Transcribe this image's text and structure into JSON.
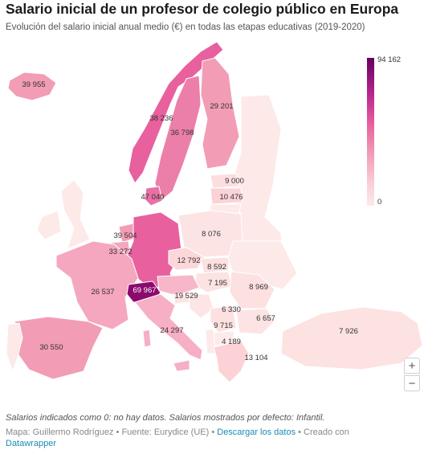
{
  "header": {
    "title": "Salario inicial de un profesor de colegio público en Europa",
    "subtitle": "Evolución del salario inicial anual medio (€) en todas las etapas educativas (2019-2020)"
  },
  "legend": {
    "max_label": "94 162",
    "min_label": "0"
  },
  "colors": {
    "highest": "#67005f",
    "high": "#b8288f",
    "mid": "#e8609e",
    "low": "#f29cb5",
    "lower": "#f9cfd6",
    "lowest": "#fde9e8"
  },
  "values": {
    "iceland": "39 955",
    "norway": "38 236",
    "sweden": "36 798",
    "finland": "29 201",
    "estonia": "9 000",
    "latvia": "10 476",
    "denmark": "47 040",
    "netherlands": "39 504",
    "belgium": "33 272",
    "poland": "8 076",
    "czechia": "12 792",
    "slovakia": "8 592",
    "hungary": "7 195",
    "romania": "8 969",
    "france": "26 537",
    "switzerland": "69 967",
    "austria": "19 529",
    "croatia": "6 330",
    "bulgaria": "6 657",
    "italy": "24 297",
    "serbia": "9 715",
    "north_macedonia": "4 189",
    "greece": "13 104",
    "spain": "30 550",
    "turkey": "7 926"
  },
  "zoom": {
    "in_label": "+",
    "out_label": "−"
  },
  "footer": {
    "note": "Salarios indicados como 0: no hay datos. Salarios mostrados por defecto: Infantil.",
    "credit_prefix": "Mapa: Guillermo Rodríguez • Fuente: Eurydice (UE) • ",
    "download_link": "Descargar los datos",
    "created_prefix": " • Creado con ",
    "tool_link": "Datawrapper"
  }
}
